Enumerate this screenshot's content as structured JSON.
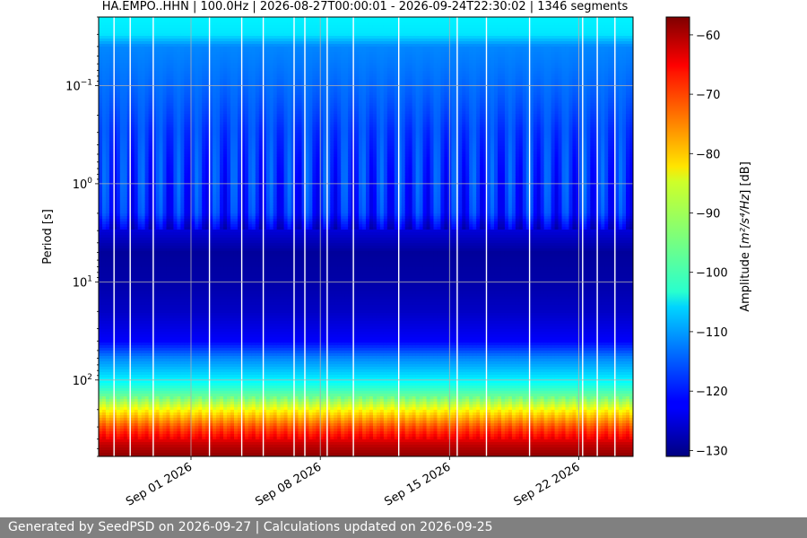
{
  "footer": {
    "text": "Generated by SeedPSD on 2026-09-27 | Calculations updated on 2026-09-25"
  },
  "chart_data": {
    "type": "heatmap",
    "title": "HA.EMPO..HHN | 100.0Hz | 2026-08-27T00:00:01 - 2026-09-24T22:30:02 | 1346 segments",
    "xlabel": "",
    "ylabel": "Period [s]",
    "y_scale": "log",
    "y_inverted": true,
    "x_range": [
      "2026-08-27T00:00:01",
      "2026-09-24T22:30:02"
    ],
    "x_ticks": [
      {
        "date": "2026-09-01",
        "label": "Sep 01 2026"
      },
      {
        "date": "2026-09-08",
        "label": "Sep 08 2026"
      },
      {
        "date": "2026-09-15",
        "label": "Sep 15 2026"
      },
      {
        "date": "2026-09-22",
        "label": "Sep 22 2026"
      }
    ],
    "y_ticks": [
      {
        "value": 0.1,
        "base": "10",
        "exp": "−1"
      },
      {
        "value": 1,
        "base": "10",
        "exp": "0"
      },
      {
        "value": 10,
        "base": "10",
        "exp": "1"
      },
      {
        "value": 100,
        "base": "10",
        "exp": "2"
      }
    ],
    "ylim": [
      0.02,
      600
    ],
    "grid": true,
    "colormap": "jet",
    "colorbar": {
      "label_prefix": "Amplitude [",
      "label_unit": "m²/s⁴/Hz",
      "label_suffix": "] [dB]",
      "range": [
        -131,
        -57
      ],
      "ticks": [
        -60,
        -70,
        -80,
        -90,
        -100,
        -110,
        -120,
        -130
      ]
    },
    "period_profile_db": [
      {
        "period": 0.02,
        "db": -104
      },
      {
        "period": 0.03,
        "db": -105
      },
      {
        "period": 0.04,
        "db": -112
      },
      {
        "period": 0.1,
        "db": -114
      },
      {
        "period": 0.3,
        "db": -117
      },
      {
        "period": 1.0,
        "db": -118
      },
      {
        "period": 2.0,
        "db": -119
      },
      {
        "period": 2.8,
        "db": -124
      },
      {
        "period": 5.0,
        "db": -129
      },
      {
        "period": 10,
        "db": -128
      },
      {
        "period": 20,
        "db": -126
      },
      {
        "period": 40,
        "db": -122
      },
      {
        "period": 60,
        "db": -112
      },
      {
        "period": 100,
        "db": -104
      },
      {
        "period": 150,
        "db": -95
      },
      {
        "period": 220,
        "db": -82
      },
      {
        "period": 300,
        "db": -72
      },
      {
        "period": 450,
        "db": -62
      },
      {
        "period": 600,
        "db": -58
      }
    ],
    "data_gaps": [
      "2026-08-27T20:00",
      "2026-08-28T17:00",
      "2026-08-29T23:00",
      "2026-09-02T00:00",
      "2026-09-03T18:00",
      "2026-09-04T22:00",
      "2026-09-06T14:00",
      "2026-09-07T04:00",
      "2026-09-08T09:00",
      "2026-09-09T19:00",
      "2026-09-12T06:00",
      "2026-09-15T10:00",
      "2026-09-17T00:00",
      "2026-09-19T08:00",
      "2026-09-22T05:00",
      "2026-09-23T00:00",
      "2026-09-23T23:00"
    ]
  }
}
